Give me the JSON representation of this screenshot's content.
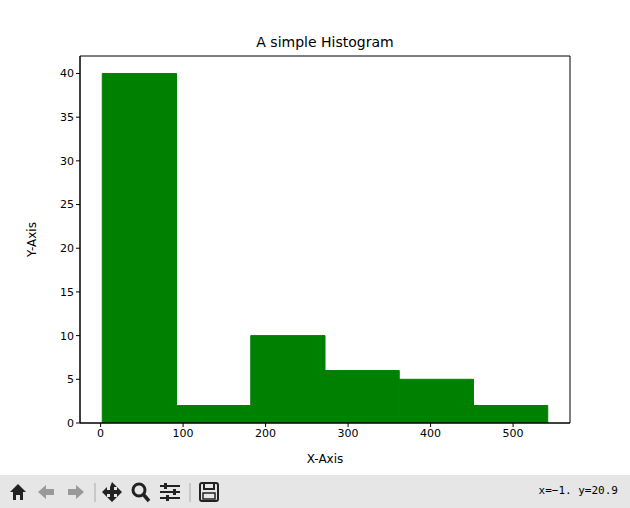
{
  "chart_data": {
    "type": "histogram",
    "title": "A simple Histogram",
    "x_label": "X-Axis",
    "y_label": "Y-Axis",
    "bins": [
      2,
      92,
      182,
      272,
      362,
      452,
      542
    ],
    "values": [
      40,
      2,
      10,
      6,
      5,
      2
    ],
    "color": "#008000",
    "xlim": [
      -25,
      569
    ],
    "ylim": [
      0,
      42
    ],
    "xticks": [
      0,
      100,
      200,
      300,
      400,
      500
    ],
    "yticks": [
      0,
      5,
      10,
      15,
      20,
      25,
      30,
      35,
      40
    ],
    "grid": false
  },
  "window": {
    "status": "x=−1. y=20.9"
  }
}
